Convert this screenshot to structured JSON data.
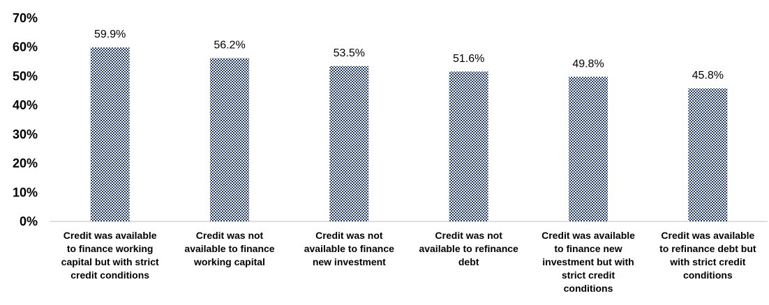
{
  "chart_data": {
    "type": "bar",
    "categories": [
      [
        "Credit was available",
        "to finance working",
        "capital but with strict",
        "credit conditions"
      ],
      [
        "Credit was not",
        "available to finance",
        "working capital"
      ],
      [
        "Credit was not",
        "available to finance",
        "new investment"
      ],
      [
        "Credit was not",
        "available to refinance",
        "debt"
      ],
      [
        "Credit was available",
        "to finance new",
        "investment but with",
        "strict credit",
        "conditions"
      ],
      [
        "Credit was available",
        "to refinance debt but",
        "with strict credit",
        "conditions"
      ]
    ],
    "values": [
      59.9,
      56.2,
      53.5,
      51.6,
      49.8,
      45.8
    ],
    "data_labels": [
      "59.9%",
      "56.2%",
      "53.5%",
      "51.6%",
      "49.8%",
      "45.8%"
    ],
    "yticks": [
      "0%",
      "10%",
      "20%",
      "30%",
      "40%",
      "50%",
      "60%",
      "70%"
    ],
    "ylim": [
      0,
      70
    ],
    "grid": false,
    "legend": "none",
    "bar_color": "#1f3864",
    "bar_pattern": "checkered"
  }
}
